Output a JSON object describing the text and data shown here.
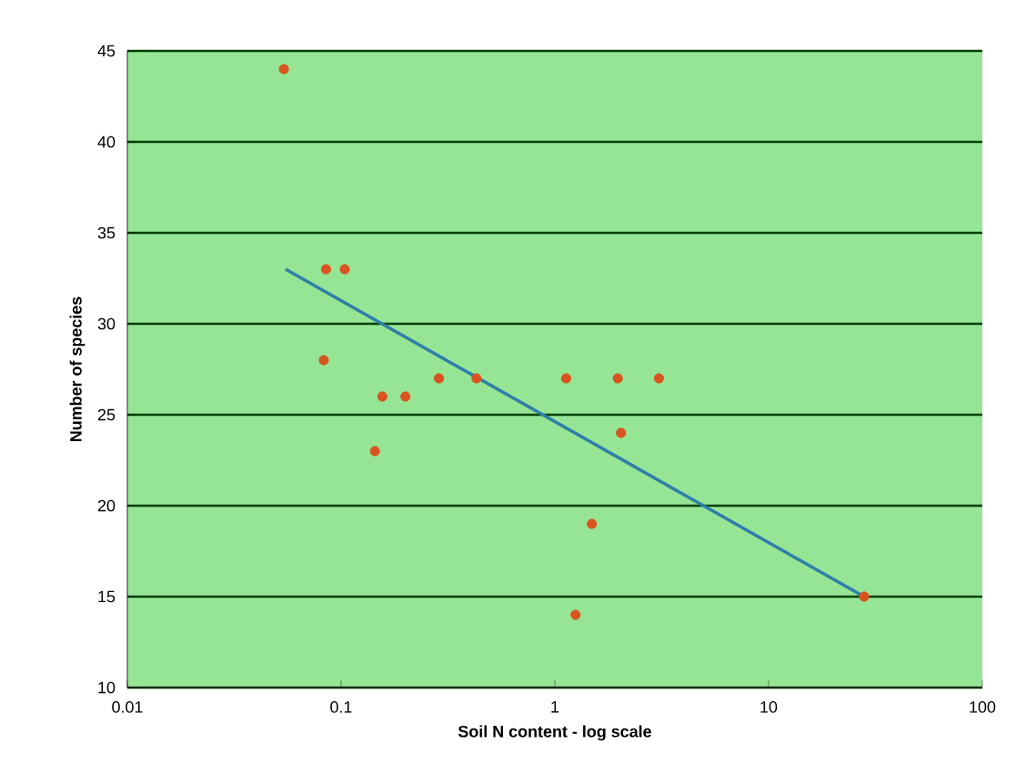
{
  "chart_data": {
    "type": "scatter",
    "xlabel": "Soil N content - log scale",
    "ylabel": "Number of species",
    "log": "x",
    "grid": "y",
    "marker": "circle",
    "xlim": [
      0.01,
      100
    ],
    "ylim": [
      10,
      45
    ],
    "xticks": [
      0.01,
      0.1,
      1,
      10,
      100
    ],
    "yticks": [
      10,
      15,
      20,
      25,
      30,
      35,
      40,
      45
    ],
    "series": [
      {
        "color": "#d9531e",
        "x": [
          0.054,
          0.085,
          0.104,
          0.083,
          0.156,
          0.2,
          0.144,
          0.287,
          0.43,
          1.13,
          1.97,
          3.07,
          2.04,
          1.49,
          1.25,
          28
        ],
        "values": [
          44,
          33,
          33,
          28,
          26,
          26,
          23,
          27,
          27,
          27,
          27,
          27,
          24,
          19,
          14,
          15
        ]
      },
      {
        "type": "line",
        "color": "#2e7fa8",
        "marker": "none",
        "x": [
          0.055,
          28
        ],
        "values": [
          33,
          15
        ]
      }
    ]
  }
}
